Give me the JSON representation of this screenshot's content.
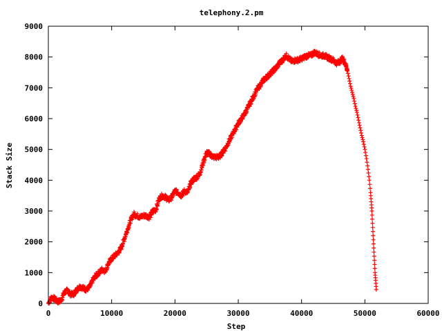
{
  "chart_data": {
    "type": "scatter",
    "title": "telephony.2.pm",
    "xlabel": "Step",
    "ylabel": "Stack Size",
    "xlim": [
      0,
      60000
    ],
    "ylim": [
      0,
      9000
    ],
    "xticks": [
      0,
      10000,
      20000,
      30000,
      40000,
      50000,
      60000
    ],
    "yticks": [
      0,
      1000,
      2000,
      3000,
      4000,
      5000,
      6000,
      7000,
      8000,
      9000
    ],
    "grid": false,
    "legend": "none",
    "marker": "+",
    "series": [
      {
        "color": "#ff0000",
        "points": [
          [
            0,
            0
          ],
          [
            500,
            200
          ],
          [
            1000,
            150
          ],
          [
            1500,
            50
          ],
          [
            2000,
            100
          ],
          [
            2500,
            350
          ],
          [
            3000,
            420
          ],
          [
            3500,
            300
          ],
          [
            4000,
            300
          ],
          [
            4500,
            450
          ],
          [
            5000,
            550
          ],
          [
            5500,
            500
          ],
          [
            6000,
            450
          ],
          [
            6500,
            520
          ],
          [
            7000,
            750
          ],
          [
            7500,
            900
          ],
          [
            8000,
            1000
          ],
          [
            8500,
            1100
          ],
          [
            9000,
            1050
          ],
          [
            9500,
            1300
          ],
          [
            10000,
            1450
          ],
          [
            10500,
            1550
          ],
          [
            11000,
            1650
          ],
          [
            11500,
            1800
          ],
          [
            12000,
            2100
          ],
          [
            12500,
            2400
          ],
          [
            13000,
            2700
          ],
          [
            13500,
            2900
          ],
          [
            14000,
            2850
          ],
          [
            14500,
            2800
          ],
          [
            15000,
            2850
          ],
          [
            15500,
            2850
          ],
          [
            16000,
            2800
          ],
          [
            16500,
            3000
          ],
          [
            17000,
            3050
          ],
          [
            17500,
            3400
          ],
          [
            18000,
            3500
          ],
          [
            18500,
            3450
          ],
          [
            19000,
            3350
          ],
          [
            19500,
            3450
          ],
          [
            20000,
            3650
          ],
          [
            20500,
            3600
          ],
          [
            21000,
            3500
          ],
          [
            21500,
            3650
          ],
          [
            22000,
            3600
          ],
          [
            22500,
            3900
          ],
          [
            23000,
            4050
          ],
          [
            23500,
            4100
          ],
          [
            24000,
            4250
          ],
          [
            24500,
            4600
          ],
          [
            25000,
            4900
          ],
          [
            25500,
            4850
          ],
          [
            26000,
            4750
          ],
          [
            26500,
            4750
          ],
          [
            27000,
            4750
          ],
          [
            27500,
            4900
          ],
          [
            28000,
            5050
          ],
          [
            28500,
            5250
          ],
          [
            29000,
            5450
          ],
          [
            29500,
            5650
          ],
          [
            30000,
            5850
          ],
          [
            30500,
            6000
          ],
          [
            31000,
            6150
          ],
          [
            31500,
            6350
          ],
          [
            32000,
            6550
          ],
          [
            32500,
            6750
          ],
          [
            33000,
            6950
          ],
          [
            33500,
            7100
          ],
          [
            34000,
            7250
          ],
          [
            34500,
            7350
          ],
          [
            35000,
            7450
          ],
          [
            35500,
            7550
          ],
          [
            36000,
            7650
          ],
          [
            36500,
            7800
          ],
          [
            37000,
            7900
          ],
          [
            37500,
            8050
          ],
          [
            38000,
            7950
          ],
          [
            38500,
            7850
          ],
          [
            39000,
            7900
          ],
          [
            39500,
            7900
          ],
          [
            40000,
            7950
          ],
          [
            40500,
            8000
          ],
          [
            41000,
            8050
          ],
          [
            41500,
            8050
          ],
          [
            42000,
            8150
          ],
          [
            42500,
            8100
          ],
          [
            43000,
            8050
          ],
          [
            43500,
            8050
          ],
          [
            44000,
            8000
          ],
          [
            44500,
            7950
          ],
          [
            45000,
            7900
          ],
          [
            45500,
            7800
          ],
          [
            46000,
            7850
          ],
          [
            46500,
            7950
          ],
          [
            47000,
            7750
          ],
          [
            47250,
            7550
          ],
          [
            47500,
            7300
          ],
          [
            47750,
            7050
          ],
          [
            48000,
            6850
          ],
          [
            48250,
            6650
          ],
          [
            48500,
            6400
          ],
          [
            48750,
            6200
          ],
          [
            49000,
            5950
          ],
          [
            49250,
            5700
          ],
          [
            49500,
            5450
          ],
          [
            49750,
            5250
          ],
          [
            50000,
            5000
          ],
          [
            50250,
            4700
          ],
          [
            50500,
            4350
          ],
          [
            50700,
            4000
          ],
          [
            50900,
            3600
          ],
          [
            51000,
            3300
          ],
          [
            51100,
            3000
          ],
          [
            51200,
            2600
          ],
          [
            51300,
            2200
          ],
          [
            51400,
            1800
          ],
          [
            51500,
            1400
          ],
          [
            51600,
            1000
          ],
          [
            51700,
            750
          ],
          [
            51800,
            450
          ]
        ]
      }
    ]
  }
}
